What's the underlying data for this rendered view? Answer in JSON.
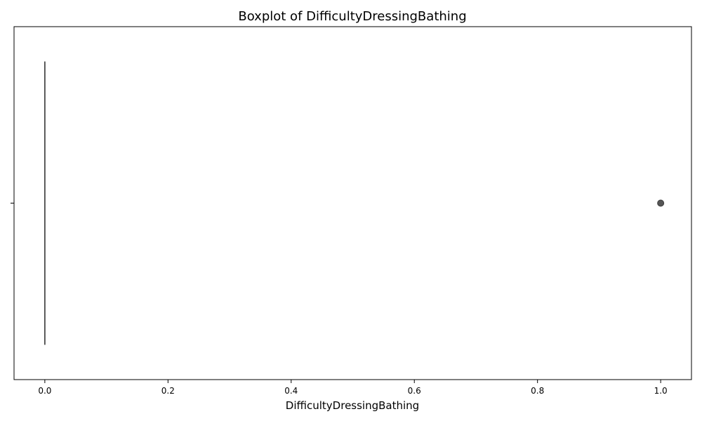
{
  "chart_data": {
    "type": "boxplot",
    "title": "Boxplot of DifficultyDressingBathing",
    "xlabel": "DifficultyDressingBathing",
    "ylabel": "",
    "xlim": [
      -0.05,
      1.05
    ],
    "x_ticks": [
      0.0,
      0.2,
      0.4,
      0.6,
      0.8,
      1.0
    ],
    "x_tick_labels": [
      "0.0",
      "0.2",
      "0.4",
      "0.6",
      "0.8",
      "1.0"
    ],
    "y_tick_labels": [
      ""
    ],
    "grid": false,
    "series": [
      {
        "min": 0.0,
        "q1": 0.0,
        "median": 0.0,
        "q3": 0.0,
        "max": 0.0,
        "outliers": [
          1.0
        ]
      }
    ],
    "colors": {
      "box_line": "#3f3f3f",
      "outlier_fill": "#555555",
      "outlier_edge": "#3f3f3f",
      "axis": "#000000"
    }
  }
}
